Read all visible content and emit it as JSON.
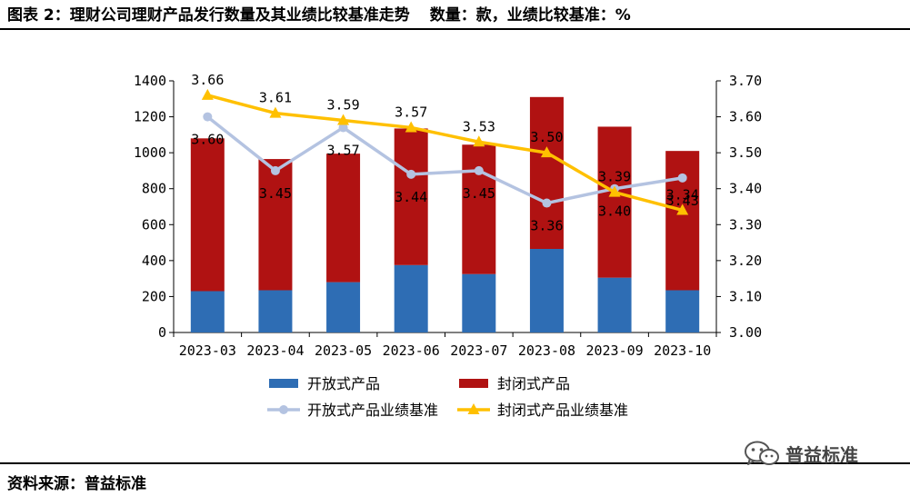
{
  "header": {
    "title": "图表 2：理财公司理财产品发行数量及其业绩比较基准走势",
    "units": "数量：款，业绩比较基准：%"
  },
  "footer": {
    "source": "资料来源：普益标准"
  },
  "watermark": {
    "text": "普益标准",
    "icon": "wechat-icon"
  },
  "chart_data": {
    "type": "bar",
    "stacked": true,
    "categories": [
      "2023-03",
      "2023-04",
      "2023-05",
      "2023-06",
      "2023-07",
      "2023-08",
      "2023-09",
      "2023-10"
    ],
    "y_left": {
      "ylim": [
        0,
        1400
      ],
      "ticks": [
        "0",
        "200",
        "400",
        "600",
        "800",
        "1000",
        "1200",
        "1400"
      ]
    },
    "y_right": {
      "ylim": [
        3.0,
        3.7
      ],
      "ticks": [
        "3.00",
        "3.10",
        "3.20",
        "3.30",
        "3.40",
        "3.50",
        "3.60",
        "3.70"
      ]
    },
    "series": [
      {
        "name": "开放式产品",
        "kind": "bar",
        "axis": "left",
        "color": "#2E6DB4",
        "values": [
          230,
          235,
          280,
          375,
          325,
          465,
          305,
          235
        ]
      },
      {
        "name": "封闭式产品",
        "kind": "bar",
        "axis": "left",
        "color": "#B01212",
        "values": [
          850,
          730,
          715,
          760,
          720,
          845,
          840,
          775
        ]
      },
      {
        "name": "开放式产品业绩基准",
        "kind": "line",
        "axis": "right",
        "color": "#B4C3E1",
        "marker": "circle",
        "values": [
          3.6,
          3.45,
          3.57,
          3.44,
          3.45,
          3.36,
          3.4,
          3.43
        ],
        "labels": [
          "3.60",
          "3.45",
          "3.57",
          "3.44",
          "3.45",
          "3.36",
          "3.40",
          "3.43"
        ]
      },
      {
        "name": "封闭式产品业绩基准",
        "kind": "line",
        "axis": "right",
        "color": "#FFC000",
        "marker": "triangle",
        "values": [
          3.66,
          3.61,
          3.59,
          3.57,
          3.53,
          3.5,
          3.39,
          3.34
        ],
        "labels": [
          "3.66",
          "3.61",
          "3.59",
          "3.57",
          "3.53",
          "3.50",
          "3.39",
          "3.34"
        ]
      }
    ],
    "legend_position": "bottom",
    "grid": false
  }
}
